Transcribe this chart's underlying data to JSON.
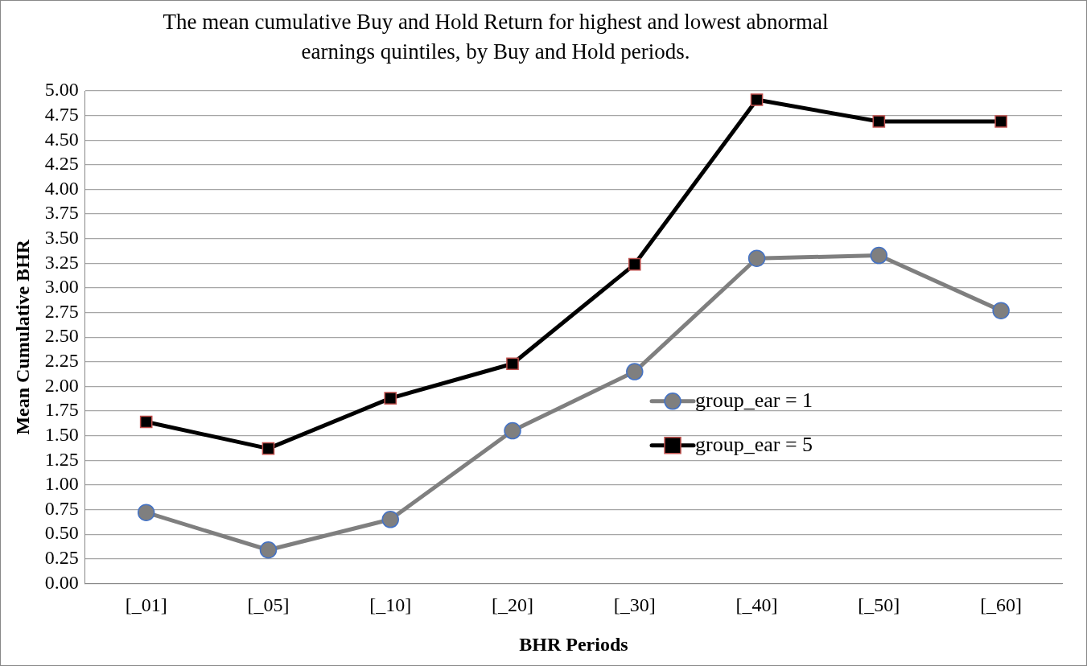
{
  "chart_data": {
    "type": "line",
    "title": "The mean cumulative Buy and Hold Return for highest and lowest abnormal earnings quintiles, by Buy and Hold periods.",
    "xlabel": "BHR Periods",
    "ylabel": "Mean Cumulative BHR",
    "categories": [
      "[_01]",
      "[_05]",
      "[_10]",
      "[_20]",
      "[_30]",
      "[_40]",
      "[_50]",
      "[_60]"
    ],
    "series": [
      {
        "name": "group_ear = 1",
        "color": "#7f7f7f",
        "marker": "circle",
        "values": [
          0.72,
          0.34,
          0.65,
          1.55,
          2.15,
          3.3,
          3.33,
          2.77
        ]
      },
      {
        "name": "group_ear = 5",
        "color": "#000000",
        "marker": "square",
        "values": [
          1.64,
          1.37,
          1.88,
          2.23,
          3.24,
          4.91,
          4.69,
          4.69
        ]
      }
    ],
    "ylim": [
      0,
      5
    ],
    "yticks": [
      {
        "value": 0,
        "label": "0.00"
      },
      {
        "value": 0.25,
        "label": "0.25"
      },
      {
        "value": 0.5,
        "label": "0.50"
      },
      {
        "value": 0.75,
        "label": "0.75"
      },
      {
        "value": 1,
        "label": "1.00"
      },
      {
        "value": 1.25,
        "label": "1.25"
      },
      {
        "value": 1.5,
        "label": "1.50"
      },
      {
        "value": 1.75,
        "label": "1.75"
      },
      {
        "value": 2,
        "label": "2.00"
      },
      {
        "value": 2.25,
        "label": "2.25"
      },
      {
        "value": 2.5,
        "label": "2.50"
      },
      {
        "value": 2.75,
        "label": "2.75"
      },
      {
        "value": 3,
        "label": "3.00"
      },
      {
        "value": 3.25,
        "label": "3.25"
      },
      {
        "value": 3.5,
        "label": "3.50"
      },
      {
        "value": 3.75,
        "label": "3.75"
      },
      {
        "value": 4,
        "label": "4.00"
      },
      {
        "value": 4.25,
        "label": "4.25"
      },
      {
        "value": 4.5,
        "label": "4.50"
      },
      {
        "value": 4.75,
        "label": "4.75"
      },
      {
        "value": 5,
        "label": "5.00"
      }
    ],
    "grid": "y",
    "legend": "right"
  }
}
